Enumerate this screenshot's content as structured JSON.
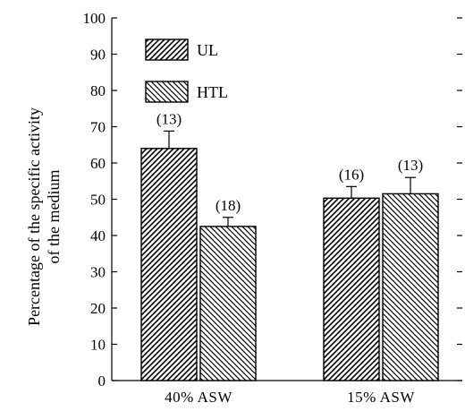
{
  "chart_data": {
    "type": "bar",
    "title": "",
    "xlabel": "",
    "ylabel": "Percentage of the specific activity",
    "ylabel_line2": "of the medium",
    "ylim": [
      0,
      100
    ],
    "yticks": [
      0,
      10,
      20,
      30,
      40,
      50,
      60,
      70,
      80,
      90,
      100
    ],
    "categories": [
      "40% ASW",
      "15% ASW"
    ],
    "series": [
      {
        "name": "UL",
        "values": [
          64,
          50.3
        ],
        "errors": [
          4.8,
          3.2
        ],
        "labels": [
          "(13)",
          "(16)"
        ],
        "pattern": "hatch-forward"
      },
      {
        "name": "HTL",
        "values": [
          42.5,
          51.5
        ],
        "errors": [
          2.5,
          4.5
        ],
        "labels": [
          "(18)",
          "(13)"
        ],
        "pattern": "hatch-backward"
      }
    ],
    "grid": false,
    "legend_position": "top-left",
    "colors": {
      "ink": "#000000",
      "background": "#ffffff"
    }
  }
}
